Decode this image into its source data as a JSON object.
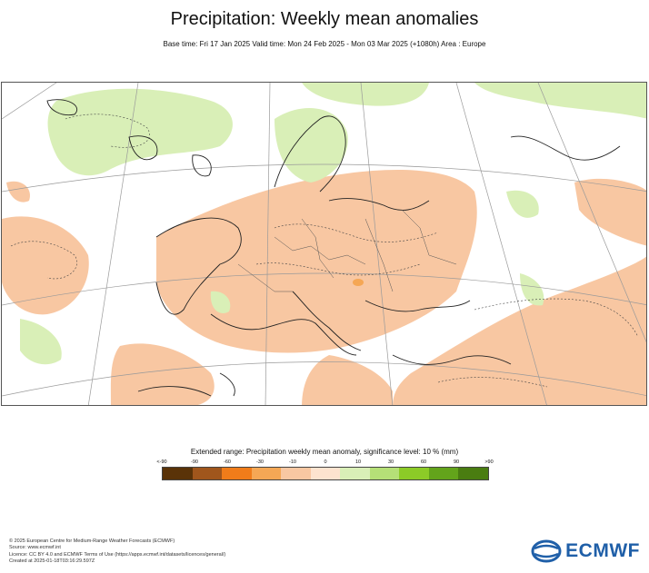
{
  "header": {
    "title": "Precipitation: Weekly mean anomalies",
    "subtitle": "Base time: Fri 17 Jan 2025 Valid time: Mon 24 Feb 2025 - Mon 03 Mar 2025 (+1080h) Area : Europe"
  },
  "legend": {
    "title": "Extended range: Precipitation weekly mean anomaly, significance level: 10 % (mm)",
    "ticks": [
      "<-90",
      "-90",
      "-60",
      "-30",
      "-10",
      "0",
      "10",
      "30",
      "60",
      "90",
      ">90"
    ],
    "colors": [
      "#5a3308",
      "#a0561c",
      "#f07c1a",
      "#f5a755",
      "#f8c7a2",
      "#fde3cf",
      "#d9efb7",
      "#b5e077",
      "#8ccb27",
      "#63a41b",
      "#4a7d11"
    ]
  },
  "footer": {
    "lines": [
      "© 2025 European Centre for Medium-Range Weather Forecasts (ECMWF)",
      "Source: www.ecmwf.int",
      "Licence: CC BY 4.0 and ECMWF Terms of Use (https://apps.ecmwf.int/datasets/licences/general/)",
      "Created at 2025-01-18T03:16:29.597Z"
    ]
  },
  "logo": {
    "text": "ECMWF",
    "color": "#1f5fa8"
  }
}
